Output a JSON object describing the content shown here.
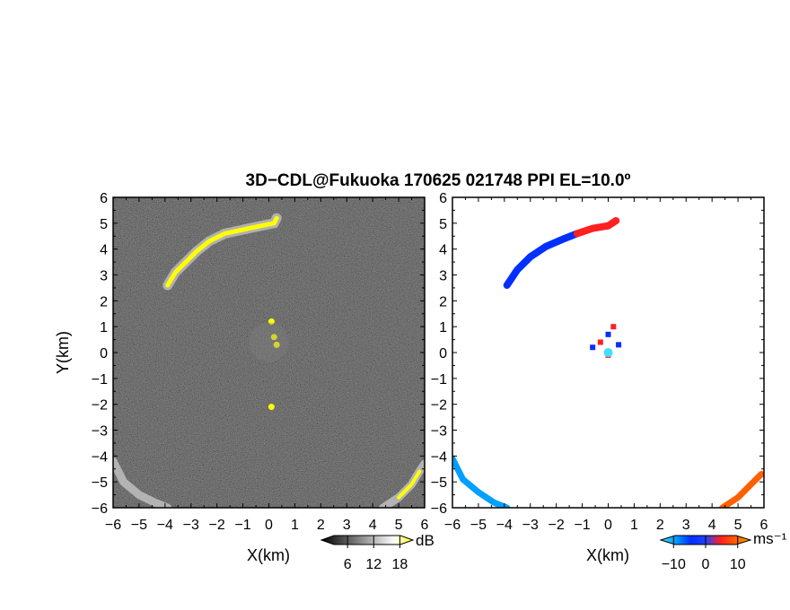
{
  "title": "3D−CDL@Fukuoka 170625 021748 PPI EL=10.0º",
  "axes": {
    "xlabel": "X(km)",
    "ylabel": "Y(km)",
    "xlim": [
      -6,
      6
    ],
    "ylim": [
      -6,
      6
    ],
    "ticks": [
      -6,
      -5,
      -4,
      -3,
      -2,
      -1,
      0,
      1,
      2,
      3,
      4,
      5,
      6
    ]
  },
  "chart_data": [
    {
      "type": "heatmap",
      "panel": "left",
      "quantity": "reflectivity",
      "xlabel": "X(km)",
      "ylabel": "Y(km)",
      "xlim": [
        -6,
        6
      ],
      "ylim": [
        -6,
        6
      ],
      "colorbar": {
        "unit": "dB",
        "ticks": [
          6,
          12,
          18
        ],
        "range": [
          0,
          21
        ],
        "colors": [
          "#000000",
          "#404040",
          "#808080",
          "#c0c0c0",
          "#ffffff",
          "#ffff00"
        ]
      },
      "features": [
        {
          "label": "echo-arc-north",
          "points": [
            [
              -3.9,
              2.6
            ],
            [
              -3.6,
              3.1
            ],
            [
              -3.2,
              3.5
            ],
            [
              -2.8,
              3.9
            ],
            [
              -2.3,
              4.3
            ],
            [
              -1.7,
              4.6
            ],
            [
              -1.0,
              4.75
            ],
            [
              -0.3,
              4.9
            ],
            [
              0.2,
              5.0
            ],
            [
              0.3,
              5.2
            ]
          ]
        },
        {
          "label": "echo-spot-center",
          "points": [
            [
              0.1,
              1.2
            ],
            [
              0.2,
              0.6
            ],
            [
              0.3,
              0.3
            ],
            [
              0.1,
              -2.1
            ]
          ]
        },
        {
          "label": "ground-clutter-sw",
          "points": [
            [
              -6.0,
              -4.2
            ],
            [
              -5.6,
              -5.0
            ],
            [
              -5.0,
              -5.5
            ],
            [
              -4.4,
              -5.8
            ],
            [
              -3.9,
              -6.0
            ]
          ]
        },
        {
          "label": "ground-clutter-se",
          "points": [
            [
              4.4,
              -6.0
            ],
            [
              5.0,
              -5.6
            ],
            [
              5.5,
              -5.1
            ],
            [
              5.8,
              -4.6
            ],
            [
              6.0,
              -4.3
            ]
          ]
        }
      ]
    },
    {
      "type": "heatmap",
      "panel": "right",
      "quantity": "doppler-velocity",
      "xlabel": "X(km)",
      "xlim": [
        -6,
        6
      ],
      "ylim": [
        -6,
        6
      ],
      "colorbar": {
        "unit": "ms⁻¹",
        "ticks": [
          -10,
          0,
          10
        ],
        "range": [
          -14,
          14
        ],
        "colors": [
          "#40e0ff",
          "#00a0ff",
          "#0030ff",
          "#2040ff",
          "#ff2020",
          "#ff6000",
          "#ffa000"
        ]
      },
      "features": [
        {
          "label": "velocity-arc-north",
          "points": [
            [
              -3.9,
              2.6
            ],
            [
              -3.5,
              3.2
            ],
            [
              -3.0,
              3.7
            ],
            [
              -2.4,
              4.1
            ],
            [
              -1.7,
              4.4
            ],
            [
              -1.2,
              4.6
            ],
            [
              -0.6,
              4.8
            ],
            [
              0.0,
              4.9
            ],
            [
              0.3,
              5.1
            ]
          ],
          "velocity_negative_until_x": -1.2
        },
        {
          "label": "velocity-center-cluster",
          "points": [
            [
              -0.6,
              0.2
            ],
            [
              -0.3,
              0.4
            ],
            [
              0.0,
              0.7
            ],
            [
              0.2,
              1.0
            ],
            [
              0.4,
              0.3
            ],
            [
              0.0,
              -0.1
            ]
          ]
        },
        {
          "label": "velocity-sw-band",
          "points": [
            [
              -6.0,
              -4.1
            ],
            [
              -5.6,
              -4.9
            ],
            [
              -5.0,
              -5.4
            ],
            [
              -4.4,
              -5.8
            ],
            [
              -3.9,
              -6.0
            ]
          ],
          "velocity_sign": "negative"
        },
        {
          "label": "velocity-se-band",
          "points": [
            [
              4.4,
              -6.0
            ],
            [
              5.0,
              -5.6
            ],
            [
              5.5,
              -5.1
            ],
            [
              5.9,
              -4.7
            ]
          ],
          "velocity_sign": "positive"
        }
      ]
    }
  ]
}
